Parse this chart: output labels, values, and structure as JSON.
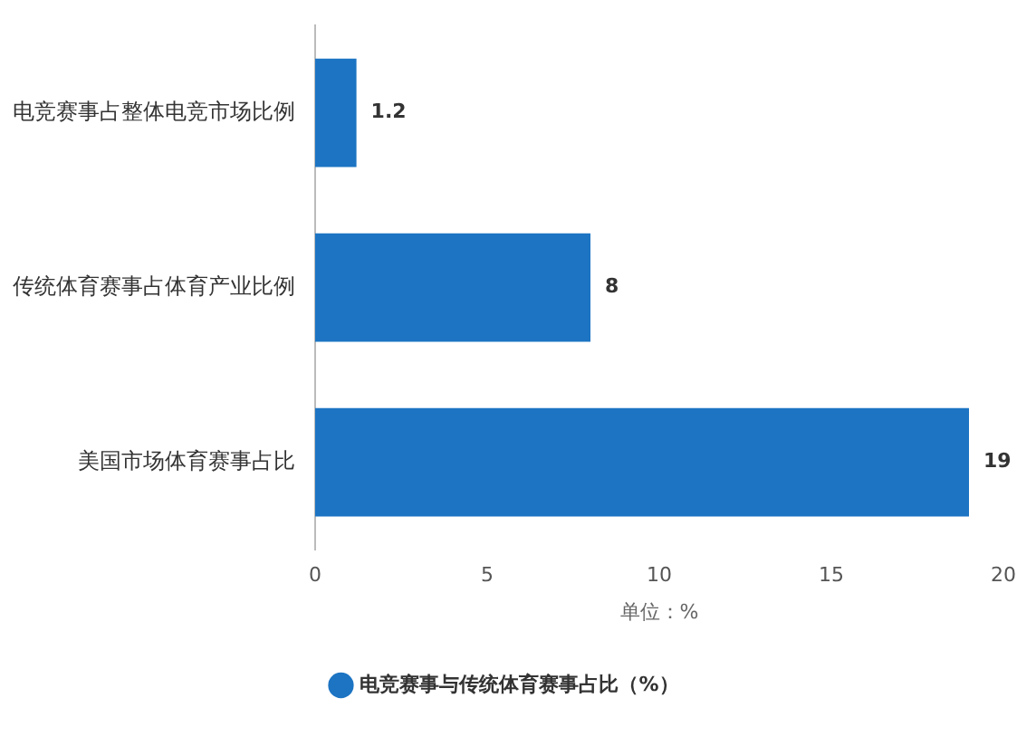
{
  "chart_data": {
    "type": "bar",
    "orientation": "horizontal",
    "xlabel": "单位：%",
    "categories": [
      "电竞赛事占整体电竞市场比例",
      "传统体育赛事占体育产业比例",
      "美国市场体育赛事占比"
    ],
    "series": [
      {
        "name": "电竞赛事与传统体育赛事占比（%）",
        "color": "#1c74c3",
        "values": [
          1.2,
          8,
          19
        ]
      }
    ],
    "xlim": [
      0,
      20
    ],
    "xticks": [
      0,
      5,
      10,
      15,
      20
    ],
    "grid": false,
    "legend": "bottom",
    "data_labels": true
  }
}
